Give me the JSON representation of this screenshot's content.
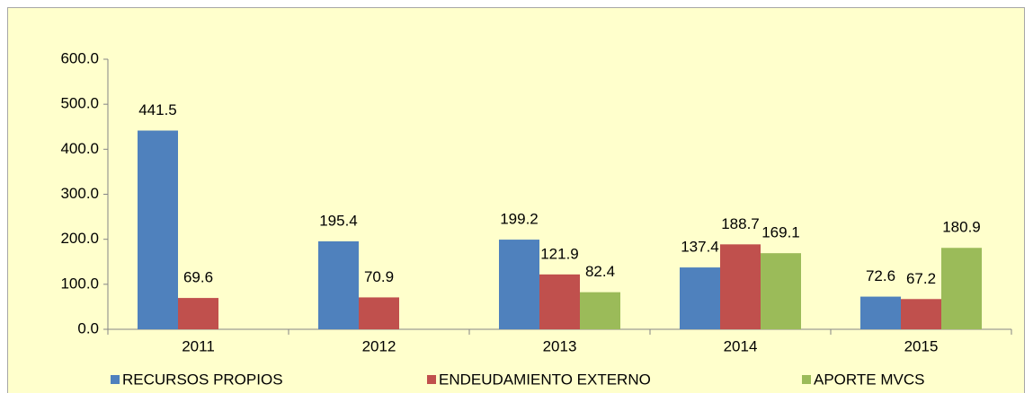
{
  "chart_data": {
    "type": "bar",
    "categories": [
      "2011",
      "2012",
      "2013",
      "2014",
      "2015"
    ],
    "series": [
      {
        "name": "RECURSOS PROPIOS",
        "color": "#4f81bd",
        "values": [
          441.5,
          195.4,
          199.2,
          137.4,
          72.6
        ]
      },
      {
        "name": "ENDEUDAMIENTO EXTERNO",
        "color": "#c0504d",
        "values": [
          69.6,
          70.9,
          121.9,
          188.7,
          67.2
        ]
      },
      {
        "name": "APORTE MVCS",
        "color": "#9bbb59",
        "values": [
          null,
          null,
          82.4,
          169.1,
          180.9
        ]
      }
    ],
    "ylim": [
      0,
      600
    ],
    "yticks": [
      {
        "value": 0,
        "label": "0.0"
      },
      {
        "value": 100,
        "label": "100.0"
      },
      {
        "value": 200,
        "label": "200.0"
      },
      {
        "value": 300,
        "label": "300.0"
      },
      {
        "value": 400,
        "label": "400.0"
      },
      {
        "value": 500,
        "label": "500.0"
      },
      {
        "value": 600,
        "label": "600.0"
      }
    ],
    "grid": false,
    "legend": "bottom"
  }
}
